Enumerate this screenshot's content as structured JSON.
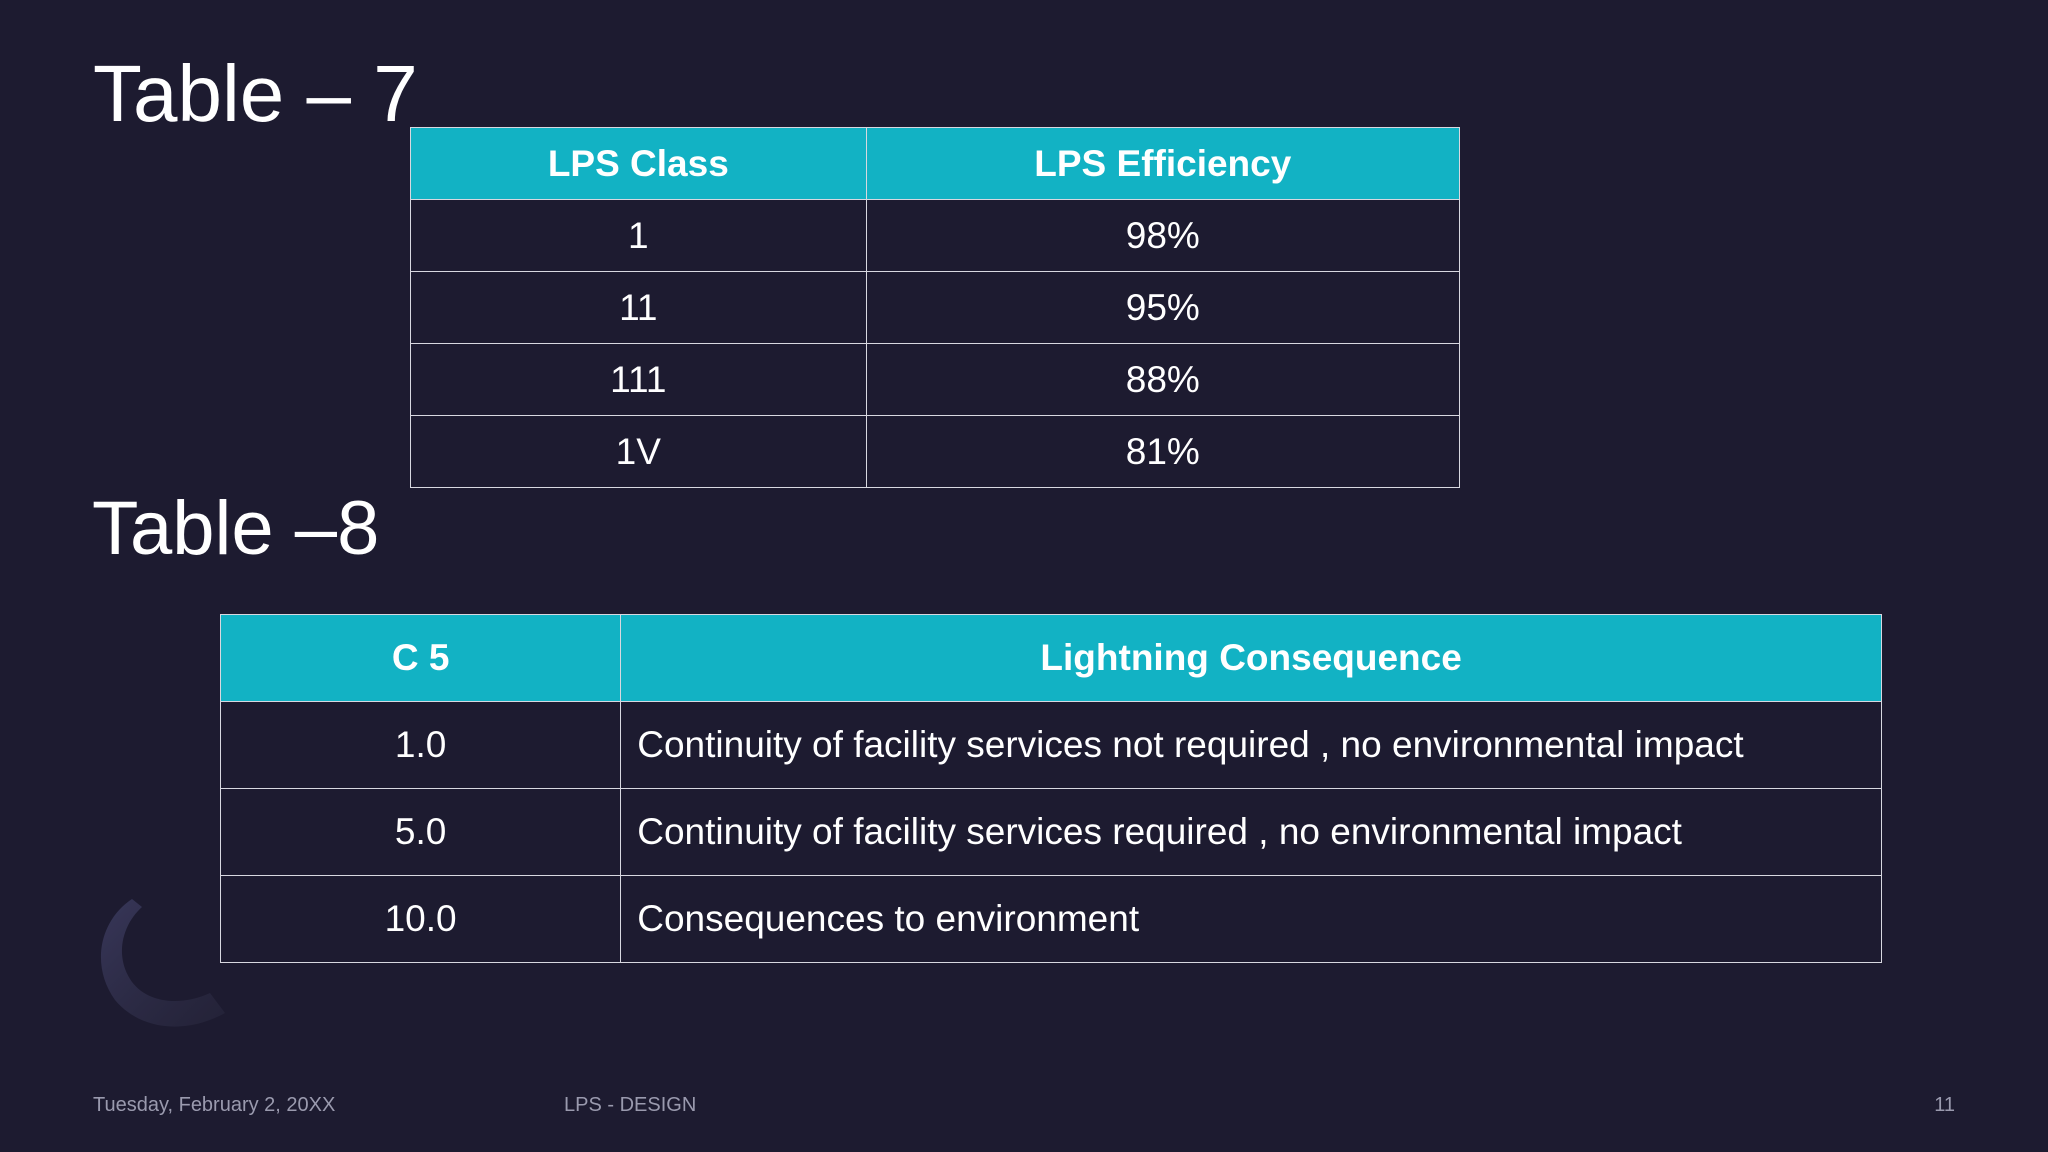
{
  "table7": {
    "title": "Table – 7",
    "headers": [
      "LPS Class",
      "LPS Efficiency"
    ],
    "rows": [
      [
        "1",
        "98%"
      ],
      [
        "11",
        "95%"
      ],
      [
        "111",
        "88%"
      ],
      [
        "1V",
        "81%"
      ]
    ]
  },
  "table8": {
    "title": "Table –8",
    "headers": [
      "C 5",
      "Lightning Consequence"
    ],
    "rows": [
      [
        "1.0",
        "Continuity of facility services not required , no environmental impact"
      ],
      [
        "5.0",
        "Continuity of facility services required , no environmental impact"
      ],
      [
        "10.0",
        "Consequences to environment"
      ]
    ]
  },
  "footer": {
    "date": "Tuesday, February 2, 20XX",
    "title": "LPS - DESIGN",
    "page": "11"
  },
  "colors": {
    "background": "#1d1b30",
    "header_fill": "#12b2c4",
    "border": "#d8d8e0"
  }
}
